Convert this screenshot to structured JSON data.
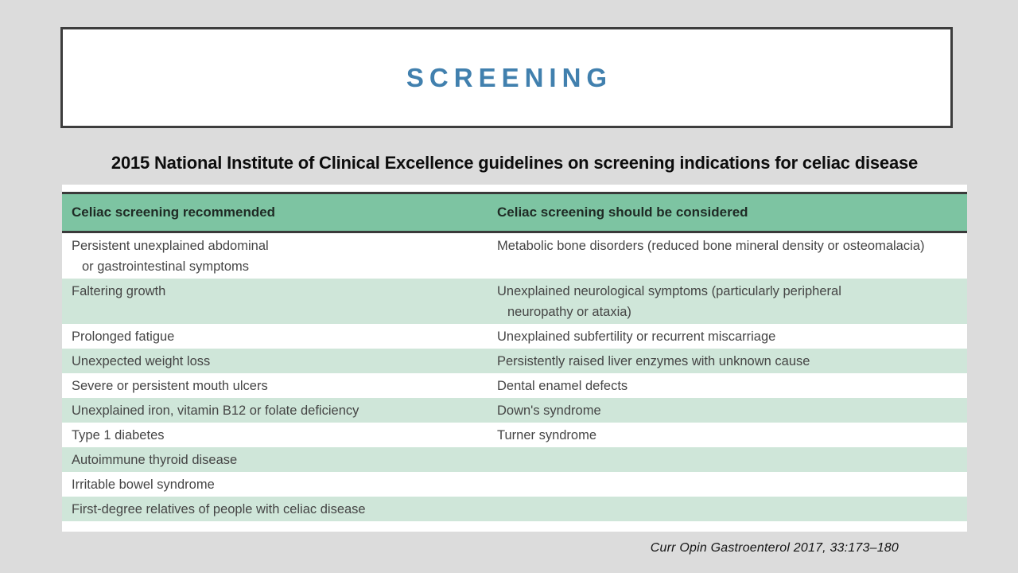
{
  "page": {
    "background_color": "#dcdcdc"
  },
  "title_box": {
    "title": "SCREENING",
    "title_color": "#4180ae",
    "border_color": "#3d3d3d"
  },
  "subtitle": "2015 National Institute of Clinical Excellence guidelines on screening indications for celiac disease",
  "table": {
    "header_background": "#7dc4a2",
    "stripe_color": "#cfe6d9",
    "rule_color": "#3a3a3a",
    "header": {
      "col1": "Celiac screening recommended",
      "col2": "Celiac screening should be considered"
    },
    "rows": [
      {
        "col1": "Persistent unexplained abdominal\nor gastrointestinal symptoms",
        "col2": "Metabolic bone disorders (reduced bone mineral density or osteomalacia)"
      },
      {
        "col1": "Faltering growth",
        "col2": "Unexplained neurological symptoms (particularly peripheral\nneuropathy or ataxia)"
      },
      {
        "col1": "Prolonged fatigue",
        "col2": "Unexplained subfertility or recurrent miscarriage"
      },
      {
        "col1": "Unexpected weight loss",
        "col2": "Persistently raised liver enzymes with unknown cause"
      },
      {
        "col1": "Severe or persistent mouth ulcers",
        "col2": "Dental enamel defects"
      },
      {
        "col1": "Unexplained iron, vitamin B12 or folate deficiency",
        "col2": "Down's syndrome"
      },
      {
        "col1": "Type 1 diabetes",
        "col2": "Turner syndrome"
      },
      {
        "col1": "Autoimmune thyroid disease",
        "col2": ""
      },
      {
        "col1": "Irritable bowel syndrome",
        "col2": ""
      },
      {
        "col1": "First-degree relatives of people with celiac disease",
        "col2": ""
      }
    ]
  },
  "citation": "Curr Opin Gastroenterol 2017, 33:173–180"
}
